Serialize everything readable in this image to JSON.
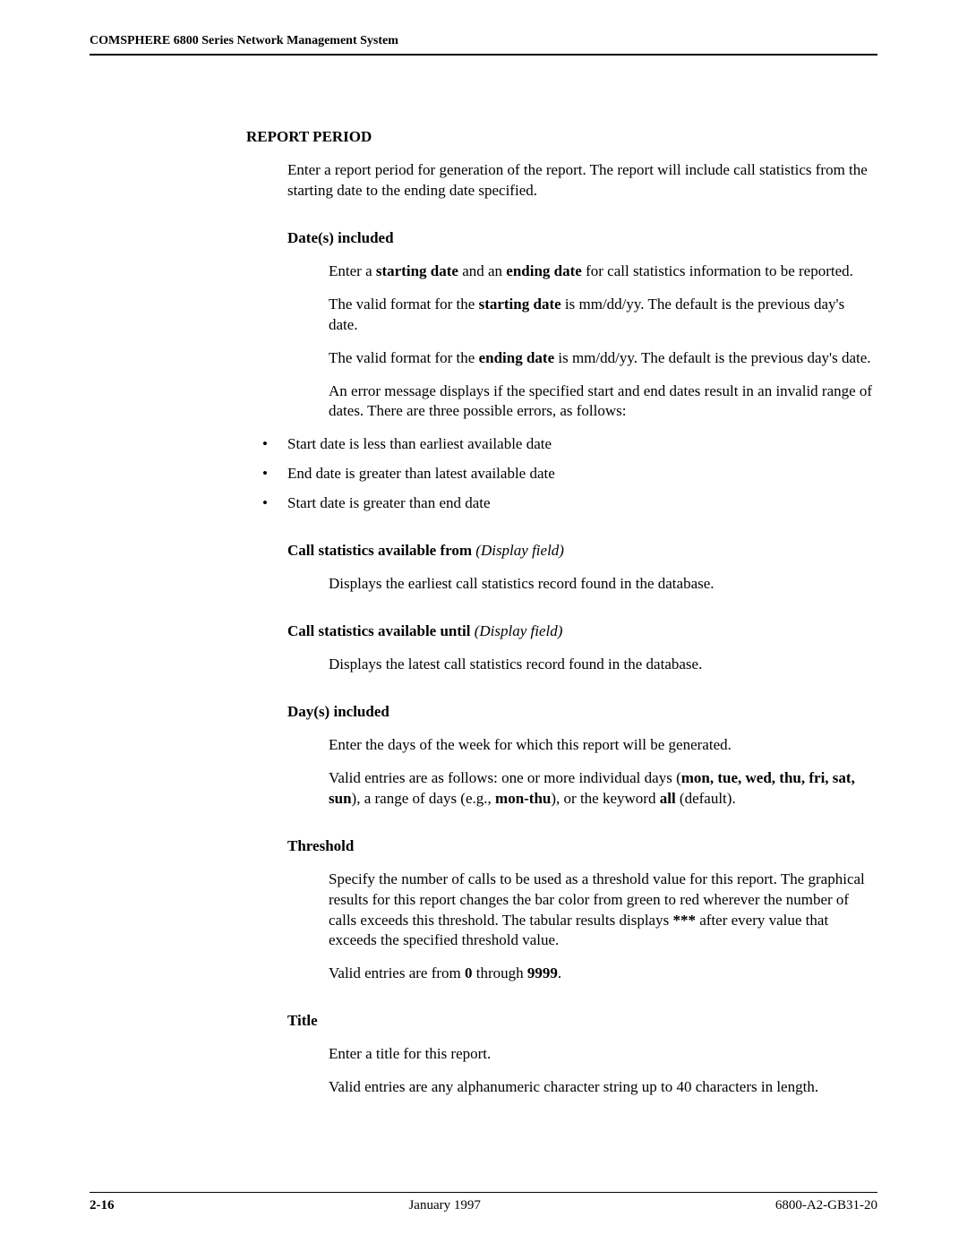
{
  "header": {
    "running_title": "COMSPHERE 6800 Series Network Management System"
  },
  "section": {
    "title": "REPORT PERIOD",
    "intro": "Enter a report period for generation of the report. The report will include call statistics from the starting date to the ending date specified."
  },
  "dates_included": {
    "heading": "Date(s) included",
    "p1_pre": "Enter a ",
    "p1_b1": "starting date",
    "p1_mid": " and an ",
    "p1_b2": "ending date",
    "p1_post": " for call statistics information to be reported.",
    "p2_pre": "The valid format for the ",
    "p2_b": "starting date",
    "p2_post": " is mm/dd/yy. The default is the previous day's date.",
    "p3_pre": "The valid format for the ",
    "p3_b": "ending date",
    "p3_post": " is mm/dd/yy. The default is the previous day's date.",
    "p4": "An error message displays if the specified start and end dates result in an invalid range of dates. There are three possible errors, as follows:",
    "bullets": [
      "Start date is less than earliest available date",
      "End date is greater than latest available date",
      "Start date is greater than end date"
    ]
  },
  "avail_from": {
    "heading": "Call statistics available from",
    "suffix": " (Display field)",
    "body": "Displays the earliest call statistics record found in the database."
  },
  "avail_until": {
    "heading": "Call statistics available until",
    "suffix": " (Display field)",
    "body": "Displays the latest call statistics record found in the database."
  },
  "days_included": {
    "heading": "Day(s) included",
    "p1": "Enter the days of the week for which this report will be generated.",
    "p2_pre": "Valid entries are as follows: one or more individual days (",
    "p2_b1": "mon, tue, wed, thu, fri, sat, sun",
    "p2_mid1": "), a range of days (e.g., ",
    "p2_b2": "mon-thu",
    "p2_mid2": "), or the keyword ",
    "p2_b3": "all",
    "p2_post": " (default)."
  },
  "threshold": {
    "heading": "Threshold",
    "p1_pre": "Specify the number of calls to be used as a threshold value for this report. The graphical results for this report changes the bar color from green to red wherever the number of calls exceeds this threshold. The tabular results displays ",
    "p1_b": "***",
    "p1_post": " after every value that exceeds the specified threshold value.",
    "p2_pre": "Valid entries are from ",
    "p2_b1": "0",
    "p2_mid": " through ",
    "p2_b2": "9999",
    "p2_post": "."
  },
  "title_section": {
    "heading": "Title",
    "p1": "Enter a title for this report.",
    "p2": "Valid entries are any alphanumeric character string up to 40 characters in length."
  },
  "footer": {
    "page": "2-16",
    "date": "January 1997",
    "docnum": "6800-A2-GB31-20"
  }
}
